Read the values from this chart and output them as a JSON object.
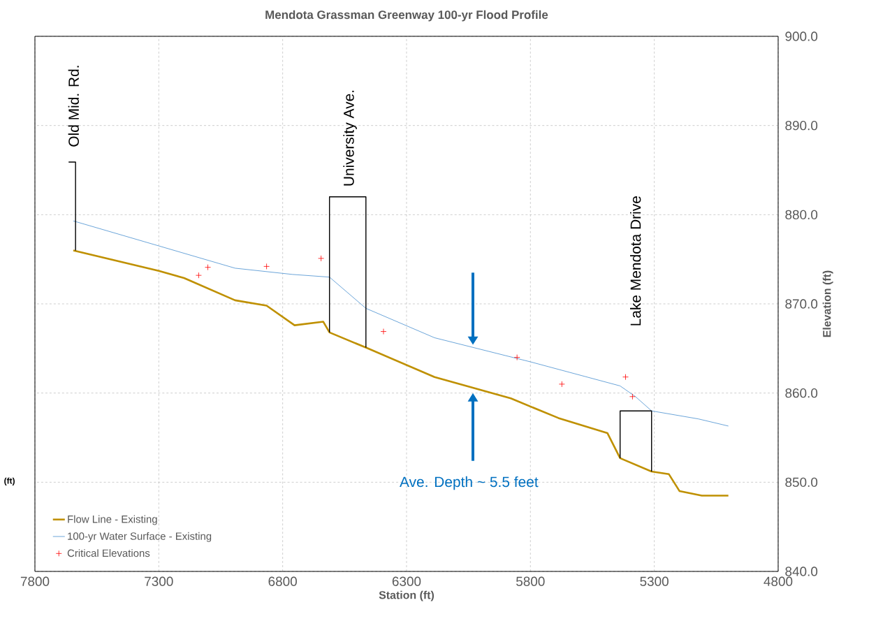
{
  "chart_data": {
    "type": "line",
    "title": "Mendota Grassman  Greenway 100-yr Flood Profile",
    "xlabel": "Station (ft)",
    "ylabel": "Elevation (ft)",
    "xlim": [
      7800,
      4800
    ],
    "xticks": [
      7800,
      7300,
      6800,
      6300,
      5800,
      5300,
      4800
    ],
    "ylim": [
      840,
      900
    ],
    "yticks": [
      {
        "value": 840,
        "label": "840.0"
      },
      {
        "value": 850,
        "label": "850.0"
      },
      {
        "value": 860,
        "label": "860.0"
      },
      {
        "value": 870,
        "label": "870.0"
      },
      {
        "value": 880,
        "label": "880.0"
      },
      {
        "value": 890,
        "label": "890.0"
      },
      {
        "value": 900,
        "label": "900.0"
      }
    ],
    "grid": true,
    "legend": "bottom left",
    "series": [
      {
        "name": "Flow Line - Existing",
        "color": "#bf9000",
        "marker": "none",
        "x": [
          7645,
          7300,
          7198,
          6992,
          6865,
          6752,
          6636,
          6611,
          6464,
          6187,
          5879,
          5687,
          5489,
          5438,
          5311,
          5241,
          5198,
          5108,
          5001
        ],
        "values": [
          876.0,
          873.7,
          872.9,
          870.4,
          869.8,
          867.6,
          868.0,
          866.8,
          865.1,
          861.8,
          859.4,
          857.2,
          855.5,
          852.7,
          851.2,
          850.9,
          849.0,
          848.5,
          848.5
        ]
      },
      {
        "name": "100-yr Water Surface - Existing",
        "color": "#5b9bd5",
        "marker": "none",
        "x": [
          7645,
          7300,
          6992,
          6760,
          6611,
          6464,
          6187,
          5800,
          5438,
          5376,
          5311,
          5122,
          5001
        ],
        "values": [
          879.3,
          876.5,
          874.0,
          873.3,
          873.0,
          869.5,
          866.2,
          863.5,
          860.8,
          859.6,
          858.0,
          857.1,
          856.3
        ]
      },
      {
        "name": "Critical Elevations",
        "type": "scatter",
        "color": "#ff0000",
        "marker": "cross",
        "x": [
          7139,
          7102,
          6865,
          6645,
          6393,
          5854,
          5673,
          5416,
          5388
        ],
        "values": [
          873.2,
          874.1,
          874.2,
          875.1,
          866.9,
          864.0,
          861.0,
          861.8,
          859.6
        ]
      },
      {
        "color": "#000000",
        "marker": "none",
        "x": [
          7664,
          7636,
          7636
        ],
        "values": [
          885.9,
          885.9,
          876.0
        ]
      },
      {
        "color": "#000000",
        "marker": "none",
        "x": [
          6611,
          6611,
          6464,
          6464
        ],
        "values": [
          866.8,
          882.0,
          882.0,
          865.1
        ]
      },
      {
        "color": "#000000",
        "marker": "none",
        "x": [
          5438,
          5438,
          5311,
          5311
        ],
        "values": [
          852.7,
          858.0,
          858.0,
          851.2
        ]
      }
    ],
    "annotations": [
      "Old Mid. Rd.",
      "University Ave.",
      "Lake Mendota Drive",
      "Ave. Depth ~ 5.5 feet",
      "(ft)"
    ]
  }
}
